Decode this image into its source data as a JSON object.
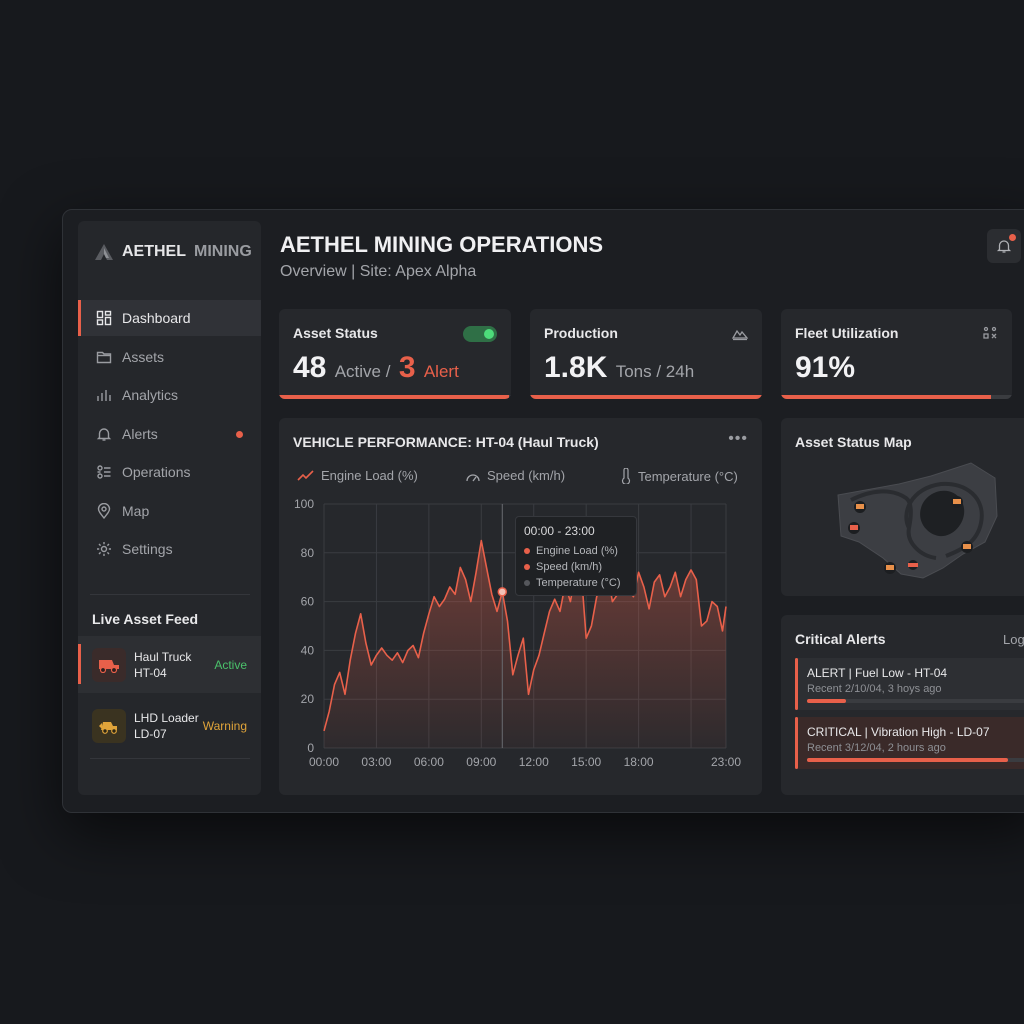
{
  "brand": {
    "name_part1": "AETHEL",
    "name_part2": "MINING"
  },
  "nav": [
    {
      "label": "Dashboard",
      "icon": "dashboard-icon"
    },
    {
      "label": "Assets",
      "icon": "folder-icon"
    },
    {
      "label": "Analytics",
      "icon": "analytics-icon"
    },
    {
      "label": "Alerts",
      "icon": "bell-icon"
    },
    {
      "label": "Operations",
      "icon": "operations-icon"
    },
    {
      "label": "Map",
      "icon": "map-pin-icon"
    },
    {
      "label": "Settings",
      "icon": "gear-icon"
    }
  ],
  "feed": {
    "title": "Live Asset Feed",
    "items": [
      {
        "name": "Haul Truck HT-04",
        "status": "Active",
        "status_color": "#4ac26b"
      },
      {
        "name": "LHD Loader LD-07",
        "status": "Warning",
        "status_color": "#e0a43a"
      }
    ]
  },
  "header": {
    "title": "AETHEL MINING OPERATIONS",
    "subtitle": "Overview | Site: Apex Alpha"
  },
  "cards": {
    "asset_status": {
      "title": "Asset Status",
      "active": "48",
      "active_label": "Active /",
      "alert": "3",
      "alert_label": "Alert",
      "progress": 0.99
    },
    "production": {
      "title": "Production",
      "value": "1.8K",
      "unit": "Tons / 24h",
      "progress": 1.0
    },
    "fleet": {
      "title": "Fleet Utilization",
      "value": "91%",
      "progress": 0.91
    }
  },
  "performance": {
    "title": "VEHICLE PERFORMANCE: HT-04 (Haul Truck)",
    "legend": [
      "Engine Load (%)",
      "Speed (km/h)",
      "Temperature (°C)"
    ],
    "tooltip": {
      "title": "00:00 - 23:00",
      "items": [
        "Engine Load (%)",
        "Speed (km/h)",
        "Temperature (°C)"
      ],
      "colors": [
        "#e8604a",
        "#e8604a",
        "#55575c"
      ]
    }
  },
  "chart_data": {
    "type": "area",
    "ylim": [
      0,
      100
    ],
    "yticks": [
      0,
      20,
      40,
      60,
      80,
      100
    ],
    "xticks": [
      "00:00",
      "03:00",
      "06:00",
      "09:00",
      "12:00",
      "15:00",
      "18:00",
      "23:00"
    ],
    "x_hours": [
      0,
      0.3,
      0.6,
      0.9,
      1.2,
      1.5,
      1.8,
      2.1,
      2.4,
      2.7,
      3.0,
      3.3,
      3.6,
      3.9,
      4.2,
      4.5,
      4.8,
      5.1,
      5.4,
      5.7,
      6.0,
      6.3,
      6.6,
      6.9,
      7.2,
      7.5,
      7.8,
      8.1,
      8.4,
      8.7,
      9.0,
      9.3,
      9.6,
      9.9,
      10.2,
      10.5,
      10.8,
      11.1,
      11.4,
      11.7,
      12.0,
      12.3,
      12.6,
      12.9,
      13.2,
      13.5,
      13.8,
      14.1,
      14.4,
      14.7,
      15.0,
      15.3,
      15.6,
      15.9,
      16.2,
      16.5,
      16.8,
      17.1,
      17.4,
      17.7,
      18.0,
      18.3,
      18.6,
      18.9,
      19.2,
      19.5,
      19.8,
      20.1,
      20.4,
      20.7,
      21.0,
      21.3,
      21.6,
      21.9,
      22.2,
      22.5,
      22.8,
      23.0
    ],
    "series": [
      {
        "name": "Engine Load (%)",
        "color": "#e8604a",
        "values": [
          7,
          15,
          26,
          31,
          22,
          36,
          47,
          55,
          43,
          34,
          38,
          41,
          38,
          36,
          39,
          35,
          40,
          42,
          37,
          47,
          55,
          62,
          58,
          61,
          66,
          63,
          74,
          69,
          60,
          72,
          85,
          74,
          63,
          56,
          64,
          52,
          30,
          38,
          45,
          22,
          32,
          38,
          47,
          56,
          61,
          56,
          67,
          60,
          72,
          74,
          45,
          50,
          62,
          67,
          73,
          60,
          63,
          78,
          66,
          62,
          72,
          66,
          57,
          68,
          71,
          62,
          66,
          72,
          62,
          69,
          73,
          69,
          50,
          52,
          60,
          58,
          48,
          58
        ]
      }
    ]
  },
  "map": {
    "title": "Asset Status Map"
  },
  "alerts": {
    "title": "Critical Alerts",
    "link": "Log",
    "items": [
      {
        "text": "ALERT | Fuel Low - HT-04",
        "sub": "Recent 2/10/04, 3 hoys ago",
        "progress": 0.18
      },
      {
        "text": "CRITICAL | Vibration High - LD-07",
        "sub": "Recent 3/12/04, 2 hours ago",
        "progress": 0.92
      }
    ]
  }
}
